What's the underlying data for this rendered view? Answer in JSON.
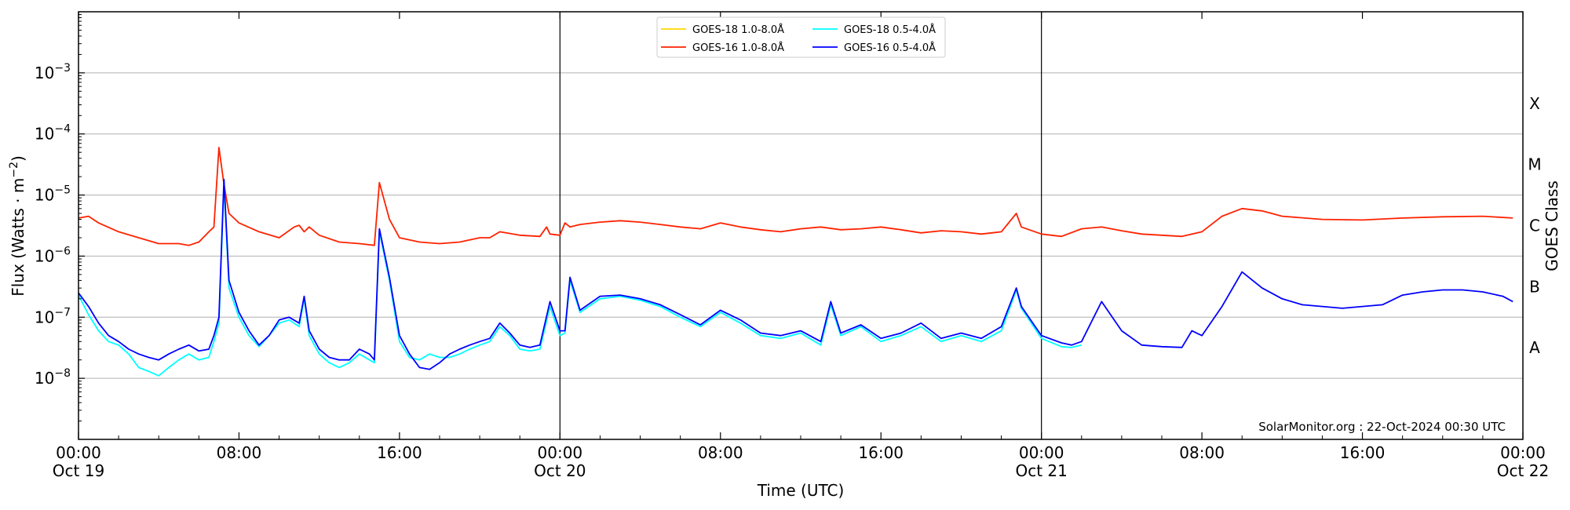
{
  "chart_data": {
    "type": "line",
    "title": "",
    "xlabel": "Time (UTC)",
    "ylabel": "Flux (Watts · m⁻²)",
    "ylabel_parts": {
      "main": "Flux (Watts · m",
      "sup": "−2",
      "close": ")"
    },
    "y2label": "GOES Class",
    "y_scale": "log",
    "ylim": [
      1e-09,
      0.01
    ],
    "xlim": [
      "2024-10-19 00:00",
      "2024-10-22 00:00"
    ],
    "grid": "horizontal at major y ticks",
    "legend_position": "top-center",
    "x_ticks": [
      {
        "t": "2024-10-19 00:00",
        "line1": "00:00",
        "line2": "Oct 19"
      },
      {
        "t": "2024-10-19 08:00",
        "line1": "08:00",
        "line2": ""
      },
      {
        "t": "2024-10-19 16:00",
        "line1": "16:00",
        "line2": ""
      },
      {
        "t": "2024-10-20 00:00",
        "line1": "00:00",
        "line2": "Oct 20"
      },
      {
        "t": "2024-10-20 08:00",
        "line1": "08:00",
        "line2": ""
      },
      {
        "t": "2024-10-20 16:00",
        "line1": "16:00",
        "line2": ""
      },
      {
        "t": "2024-10-21 00:00",
        "line1": "00:00",
        "line2": "Oct 21"
      },
      {
        "t": "2024-10-21 08:00",
        "line1": "08:00",
        "line2": ""
      },
      {
        "t": "2024-10-21 16:00",
        "line1": "16:00",
        "line2": ""
      },
      {
        "t": "2024-10-22 00:00",
        "line1": "00:00",
        "line2": "Oct 22"
      }
    ],
    "day_boundaries": [
      "2024-10-20 00:00",
      "2024-10-21 00:00"
    ],
    "y_ticks": [
      {
        "value": 0.001,
        "base": "10",
        "exp": "−3"
      },
      {
        "value": 0.0001,
        "base": "10",
        "exp": "−4"
      },
      {
        "value": 1e-05,
        "base": "10",
        "exp": "−5"
      },
      {
        "value": 1e-06,
        "base": "10",
        "exp": "−6"
      },
      {
        "value": 1e-07,
        "base": "10",
        "exp": "−7"
      },
      {
        "value": 1e-08,
        "base": "10",
        "exp": "−8"
      }
    ],
    "goes_classes": [
      {
        "label": "X",
        "value": 0.000316
      },
      {
        "label": "M",
        "value": 3.16e-05
      },
      {
        "label": "C",
        "value": 3.16e-06
      },
      {
        "label": "B",
        "value": 3.16e-07
      },
      {
        "label": "A",
        "value": 3.16e-08
      }
    ],
    "series": [
      {
        "name": "GOES-18 1.0-8.0Å",
        "color": "#ffd700",
        "x": [],
        "y": []
      },
      {
        "name": "GOES-18 0.5-4.0Å",
        "color": "#00ffff",
        "x": [
          "2024-10-19 00:00",
          "2024-10-19 00:30",
          "2024-10-19 01:00",
          "2024-10-19 01:30",
          "2024-10-19 02:00",
          "2024-10-19 02:30",
          "2024-10-19 03:00",
          "2024-10-19 03:30",
          "2024-10-19 04:00",
          "2024-10-19 04:30",
          "2024-10-19 05:00",
          "2024-10-19 05:30",
          "2024-10-19 06:00",
          "2024-10-19 06:30",
          "2024-10-19 06:45",
          "2024-10-19 07:00",
          "2024-10-19 07:15",
          "2024-10-19 07:30",
          "2024-10-19 08:00",
          "2024-10-19 08:30",
          "2024-10-19 09:00",
          "2024-10-19 09:30",
          "2024-10-19 10:00",
          "2024-10-19 10:30",
          "2024-10-19 11:00",
          "2024-10-19 11:15",
          "2024-10-19 11:30",
          "2024-10-19 12:00",
          "2024-10-19 12:30",
          "2024-10-19 13:00",
          "2024-10-19 13:30",
          "2024-10-19 14:00",
          "2024-10-19 14:30",
          "2024-10-19 14:45",
          "2024-10-19 15:00",
          "2024-10-19 15:30",
          "2024-10-19 16:00",
          "2024-10-19 16:30",
          "2024-10-19 17:00",
          "2024-10-19 17:30",
          "2024-10-19 18:00",
          "2024-10-19 18:30",
          "2024-10-19 19:00",
          "2024-10-19 19:30",
          "2024-10-19 20:00",
          "2024-10-19 20:30",
          "2024-10-19 21:00",
          "2024-10-19 21:30",
          "2024-10-19 22:00",
          "2024-10-19 22:30",
          "2024-10-19 23:00",
          "2024-10-19 23:30",
          "2024-10-20 00:00",
          "2024-10-20 00:15",
          "2024-10-20 00:30",
          "2024-10-20 01:00",
          "2024-10-20 02:00",
          "2024-10-20 03:00",
          "2024-10-20 04:00",
          "2024-10-20 05:00",
          "2024-10-20 06:00",
          "2024-10-20 07:00",
          "2024-10-20 08:00",
          "2024-10-20 09:00",
          "2024-10-20 10:00",
          "2024-10-20 11:00",
          "2024-10-20 12:00",
          "2024-10-20 13:00",
          "2024-10-20 13:30",
          "2024-10-20 14:00",
          "2024-10-20 15:00",
          "2024-10-20 16:00",
          "2024-10-20 17:00",
          "2024-10-20 18:00",
          "2024-10-20 19:00",
          "2024-10-20 20:00",
          "2024-10-20 21:00",
          "2024-10-20 22:00",
          "2024-10-20 22:45",
          "2024-10-20 23:00",
          "2024-10-21 00:00",
          "2024-10-21 01:00",
          "2024-10-21 01:30",
          "2024-10-21 02:00"
        ],
        "y": [
          2.3e-07,
          1.1e-07,
          6e-08,
          4e-08,
          3.5e-08,
          2.5e-08,
          1.5e-08,
          1.3e-08,
          1.1e-08,
          1.5e-08,
          2e-08,
          2.5e-08,
          2e-08,
          2.2e-08,
          4e-08,
          8e-08,
          1.5e-05,
          3e-07,
          1e-07,
          5e-08,
          3.3e-08,
          5e-08,
          8e-08,
          9e-08,
          7e-08,
          2e-07,
          5e-08,
          2.5e-08,
          1.8e-08,
          1.5e-08,
          1.8e-08,
          2.5e-08,
          2e-08,
          1.8e-08,
          2.5e-06,
          4e-07,
          4e-08,
          2.2e-08,
          2e-08,
          2.5e-08,
          2.2e-08,
          2.2e-08,
          2.5e-08,
          3e-08,
          3.5e-08,
          4e-08,
          7e-08,
          5e-08,
          3e-08,
          2.8e-08,
          3e-08,
          1.5e-07,
          5e-08,
          5.5e-08,
          4e-07,
          1.2e-07,
          2e-07,
          2.2e-07,
          1.9e-07,
          1.5e-07,
          1e-07,
          7e-08,
          1.2e-07,
          8e-08,
          5e-08,
          4.5e-08,
          5.5e-08,
          3.5e-08,
          1.6e-07,
          5e-08,
          7e-08,
          4e-08,
          5e-08,
          7e-08,
          4e-08,
          5e-08,
          4e-08,
          6e-08,
          2.8e-07,
          1.4e-07,
          4.5e-08,
          3.3e-08,
          3.2e-08,
          3.5e-08
        ]
      },
      {
        "name": "GOES-16 1.0-8.0Å",
        "color": "#ff2200",
        "x": [
          "2024-10-19 00:00",
          "2024-10-19 00:30",
          "2024-10-19 01:00",
          "2024-10-19 02:00",
          "2024-10-19 03:00",
          "2024-10-19 04:00",
          "2024-10-19 05:00",
          "2024-10-19 05:30",
          "2024-10-19 06:00",
          "2024-10-19 06:30",
          "2024-10-19 06:45",
          "2024-10-19 07:00",
          "2024-10-19 07:15",
          "2024-10-19 07:30",
          "2024-10-19 08:00",
          "2024-10-19 09:00",
          "2024-10-19 10:00",
          "2024-10-19 10:45",
          "2024-10-19 11:00",
          "2024-10-19 11:15",
          "2024-10-19 11:30",
          "2024-10-19 12:00",
          "2024-10-19 13:00",
          "2024-10-19 14:00",
          "2024-10-19 14:45",
          "2024-10-19 15:00",
          "2024-10-19 15:30",
          "2024-10-19 16:00",
          "2024-10-19 17:00",
          "2024-10-19 18:00",
          "2024-10-19 19:00",
          "2024-10-19 20:00",
          "2024-10-19 20:30",
          "2024-10-19 21:00",
          "2024-10-19 22:00",
          "2024-10-19 23:00",
          "2024-10-19 23:20",
          "2024-10-19 23:30",
          "2024-10-20 00:00",
          "2024-10-20 00:15",
          "2024-10-20 00:30",
          "2024-10-20 01:00",
          "2024-10-20 02:00",
          "2024-10-20 03:00",
          "2024-10-20 04:00",
          "2024-10-20 05:00",
          "2024-10-20 06:00",
          "2024-10-20 07:00",
          "2024-10-20 08:00",
          "2024-10-20 09:00",
          "2024-10-20 10:00",
          "2024-10-20 11:00",
          "2024-10-20 12:00",
          "2024-10-20 13:00",
          "2024-10-20 14:00",
          "2024-10-20 15:00",
          "2024-10-20 16:00",
          "2024-10-20 17:00",
          "2024-10-20 18:00",
          "2024-10-20 19:00",
          "2024-10-20 20:00",
          "2024-10-20 21:00",
          "2024-10-20 22:00",
          "2024-10-20 22:45",
          "2024-10-20 23:00",
          "2024-10-21 00:00",
          "2024-10-21 01:00",
          "2024-10-21 02:00",
          "2024-10-21 03:00",
          "2024-10-21 04:00",
          "2024-10-21 05:00",
          "2024-10-21 06:00",
          "2024-10-21 07:00",
          "2024-10-21 08:00",
          "2024-10-21 09:00",
          "2024-10-21 10:00",
          "2024-10-21 11:00",
          "2024-10-21 12:00",
          "2024-10-21 14:00",
          "2024-10-21 16:00",
          "2024-10-21 18:00",
          "2024-10-21 20:00",
          "2024-10-21 22:00",
          "2024-10-21 23:30"
        ],
        "y": [
          4.2e-06,
          4.5e-06,
          3.5e-06,
          2.5e-06,
          2e-06,
          1.6e-06,
          1.6e-06,
          1.5e-06,
          1.7e-06,
          2.5e-06,
          3e-06,
          6e-05,
          1.5e-05,
          5e-06,
          3.5e-06,
          2.5e-06,
          2e-06,
          3e-06,
          3.2e-06,
          2.5e-06,
          3e-06,
          2.2e-06,
          1.7e-06,
          1.6e-06,
          1.5e-06,
          1.6e-05,
          4e-06,
          2e-06,
          1.7e-06,
          1.6e-06,
          1.7e-06,
          2e-06,
          2e-06,
          2.5e-06,
          2.2e-06,
          2.1e-06,
          3e-06,
          2.3e-06,
          2.2e-06,
          3.5e-06,
          3e-06,
          3.3e-06,
          3.6e-06,
          3.8e-06,
          3.6e-06,
          3.3e-06,
          3e-06,
          2.8e-06,
          3.5e-06,
          3e-06,
          2.7e-06,
          2.5e-06,
          2.8e-06,
          3e-06,
          2.7e-06,
          2.8e-06,
          3e-06,
          2.7e-06,
          2.4e-06,
          2.6e-06,
          2.5e-06,
          2.3e-06,
          2.5e-06,
          5e-06,
          3e-06,
          2.3e-06,
          2.1e-06,
          2.8e-06,
          3e-06,
          2.6e-06,
          2.3e-06,
          2.2e-06,
          2.1e-06,
          2.5e-06,
          4.5e-06,
          6e-06,
          5.5e-06,
          4.5e-06,
          4e-06,
          3.9e-06,
          4.2e-06,
          4.4e-06,
          4.5e-06,
          4.2e-06
        ]
      },
      {
        "name": "GOES-16 0.5-4.0Å",
        "color": "#0000ff",
        "x": [
          "2024-10-19 00:00",
          "2024-10-19 00:30",
          "2024-10-19 01:00",
          "2024-10-19 01:30",
          "2024-10-19 02:00",
          "2024-10-19 02:30",
          "2024-10-19 03:00",
          "2024-10-19 03:30",
          "2024-10-19 04:00",
          "2024-10-19 04:30",
          "2024-10-19 05:00",
          "2024-10-19 05:30",
          "2024-10-19 06:00",
          "2024-10-19 06:30",
          "2024-10-19 06:45",
          "2024-10-19 07:00",
          "2024-10-19 07:15",
          "2024-10-19 07:30",
          "2024-10-19 08:00",
          "2024-10-19 08:30",
          "2024-10-19 09:00",
          "2024-10-19 09:30",
          "2024-10-19 10:00",
          "2024-10-19 10:30",
          "2024-10-19 11:00",
          "2024-10-19 11:15",
          "2024-10-19 11:30",
          "2024-10-19 12:00",
          "2024-10-19 12:30",
          "2024-10-19 13:00",
          "2024-10-19 13:30",
          "2024-10-19 14:00",
          "2024-10-19 14:30",
          "2024-10-19 14:45",
          "2024-10-19 15:00",
          "2024-10-19 15:30",
          "2024-10-19 16:00",
          "2024-10-19 16:30",
          "2024-10-19 17:00",
          "2024-10-19 17:30",
          "2024-10-19 18:00",
          "2024-10-19 18:30",
          "2024-10-19 19:00",
          "2024-10-19 19:30",
          "2024-10-19 20:00",
          "2024-10-19 20:30",
          "2024-10-19 21:00",
          "2024-10-19 21:30",
          "2024-10-19 22:00",
          "2024-10-19 22:30",
          "2024-10-19 23:00",
          "2024-10-19 23:30",
          "2024-10-20 00:00",
          "2024-10-20 00:15",
          "2024-10-20 00:30",
          "2024-10-20 01:00",
          "2024-10-20 02:00",
          "2024-10-20 03:00",
          "2024-10-20 04:00",
          "2024-10-20 05:00",
          "2024-10-20 06:00",
          "2024-10-20 07:00",
          "2024-10-20 08:00",
          "2024-10-20 09:00",
          "2024-10-20 10:00",
          "2024-10-20 11:00",
          "2024-10-20 12:00",
          "2024-10-20 13:00",
          "2024-10-20 13:30",
          "2024-10-20 14:00",
          "2024-10-20 15:00",
          "2024-10-20 16:00",
          "2024-10-20 17:00",
          "2024-10-20 18:00",
          "2024-10-20 19:00",
          "2024-10-20 20:00",
          "2024-10-20 21:00",
          "2024-10-20 22:00",
          "2024-10-20 22:45",
          "2024-10-20 23:00",
          "2024-10-21 00:00",
          "2024-10-21 01:00",
          "2024-10-21 01:30",
          "2024-10-21 02:00",
          "2024-10-21 03:00",
          "2024-10-21 04:00",
          "2024-10-21 05:00",
          "2024-10-21 06:00",
          "2024-10-21 07:00",
          "2024-10-21 07:30",
          "2024-10-21 08:00",
          "2024-10-21 09:00",
          "2024-10-21 10:00",
          "2024-10-21 11:00",
          "2024-10-21 12:00",
          "2024-10-21 13:00",
          "2024-10-21 14:00",
          "2024-10-21 15:00",
          "2024-10-21 16:00",
          "2024-10-21 17:00",
          "2024-10-21 18:00",
          "2024-10-21 19:00",
          "2024-10-21 20:00",
          "2024-10-21 21:00",
          "2024-10-21 22:00",
          "2024-10-21 23:00",
          "2024-10-21 23:30"
        ],
        "y": [
          2.5e-07,
          1.5e-07,
          8e-08,
          5e-08,
          4e-08,
          3e-08,
          2.5e-08,
          2.2e-08,
          2e-08,
          2.5e-08,
          3e-08,
          3.5e-08,
          2.8e-08,
          3e-08,
          5e-08,
          1e-07,
          1.8e-05,
          4e-07,
          1.2e-07,
          6e-08,
          3.5e-08,
          5e-08,
          9e-08,
          1e-07,
          8e-08,
          2.2e-07,
          6e-08,
          3e-08,
          2.2e-08,
          2e-08,
          2e-08,
          3e-08,
          2.5e-08,
          2e-08,
          2.8e-06,
          4.5e-07,
          5e-08,
          2.5e-08,
          1.5e-08,
          1.4e-08,
          1.8e-08,
          2.5e-08,
          3e-08,
          3.5e-08,
          4e-08,
          4.5e-08,
          8e-08,
          5.5e-08,
          3.5e-08,
          3.2e-08,
          3.5e-08,
          1.8e-07,
          6e-08,
          6e-08,
          4.5e-07,
          1.3e-07,
          2.2e-07,
          2.3e-07,
          2e-07,
          1.6e-07,
          1.1e-07,
          7.5e-08,
          1.3e-07,
          9e-08,
          5.5e-08,
          5e-08,
          6e-08,
          4e-08,
          1.8e-07,
          5.5e-08,
          7.5e-08,
          4.5e-08,
          5.5e-08,
          8e-08,
          4.5e-08,
          5.5e-08,
          4.5e-08,
          7e-08,
          3e-07,
          1.5e-07,
          5e-08,
          3.8e-08,
          3.5e-08,
          4e-08,
          1.8e-07,
          6e-08,
          3.5e-08,
          3.3e-08,
          3.2e-08,
          6e-08,
          5e-08,
          1.5e-07,
          5.5e-07,
          3e-07,
          2e-07,
          1.6e-07,
          1.5e-07,
          1.4e-07,
          1.5e-07,
          1.6e-07,
          2.3e-07,
          2.6e-07,
          2.8e-07,
          2.8e-07,
          2.6e-07,
          2.2e-07,
          1.8e-07
        ]
      }
    ],
    "legend_order": [
      0,
      1,
      2,
      3
    ]
  },
  "credit": "SolarMonitor.org : 22-Oct-2024 00:30 UTC"
}
